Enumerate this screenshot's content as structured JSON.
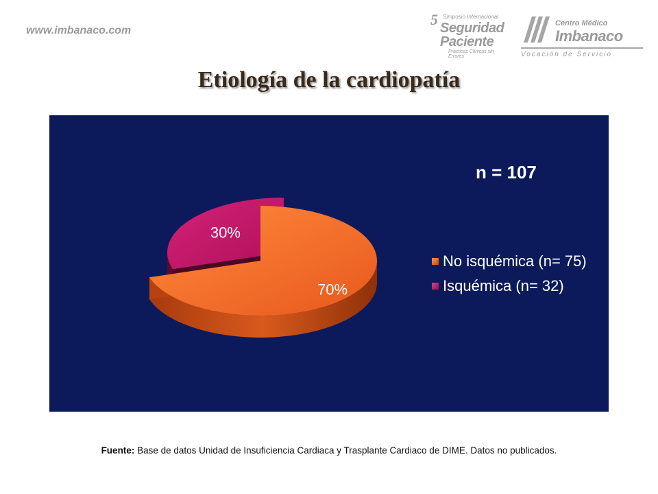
{
  "header": {
    "site_url": "www.imbanaco.com",
    "symposium_logo": {
      "number": "5",
      "line1": "Simposio Internacional",
      "line2": "Seguridad",
      "line3": "Paciente",
      "line4": "Prácticas Clínicas sin Errores"
    },
    "imbanaco_logo": {
      "top": "Centro Médico",
      "name": "Imbanaco",
      "tagline": "Vocación de Servicio"
    }
  },
  "slide": {
    "title": "Etiología de la cardiopatía"
  },
  "chart_data": {
    "type": "pie",
    "title": "",
    "annotation": "n = 107",
    "background": "#0c1a5c",
    "slices": [
      {
        "label": "No isquémica (n= 75)",
        "count": 75,
        "percent_label": "70%",
        "color": "#f26a2a"
      },
      {
        "label": "Isquémica (n= 32)",
        "count": 32,
        "percent_label": "30%",
        "color": "#c2186a"
      }
    ],
    "legend_position": "right",
    "exploded": true,
    "style": "3d"
  },
  "footer": {
    "source_label": "Fuente:",
    "source_text": " Base de datos Unidad de Insuficiencia Cardiaca y Trasplante Cardiaco de DIME. Datos no publicados."
  }
}
